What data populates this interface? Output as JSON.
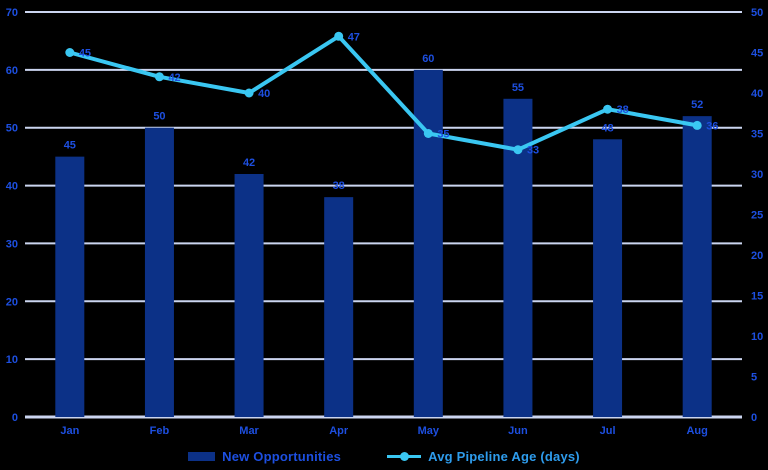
{
  "chart_data": {
    "type": "combo-bar-line",
    "title": "",
    "categories": [
      "Jan",
      "Feb",
      "Mar",
      "Apr",
      "May",
      "Jun",
      "Jul",
      "Aug"
    ],
    "series": [
      {
        "name": "New Opportunities",
        "type": "bar",
        "axis": "left",
        "values": [
          45,
          50,
          42,
          38,
          60,
          55,
          48,
          52
        ]
      },
      {
        "name": "Avg Pipeline Age (days)",
        "type": "line",
        "axis": "right",
        "values": [
          45,
          42,
          40,
          47,
          35,
          33,
          38,
          36
        ]
      }
    ],
    "left_axis": {
      "min": 0,
      "max": 70,
      "ticks": [
        0,
        10,
        20,
        30,
        40,
        50,
        60,
        70
      ]
    },
    "right_axis": {
      "min": 0,
      "max": 50,
      "ticks": [
        0,
        5,
        10,
        15,
        20,
        25,
        30,
        35,
        40,
        45,
        50
      ]
    },
    "grid": true,
    "legend_position": "bottom",
    "data_labels": true,
    "colors": {
      "background": "#000000",
      "bar": "#0c3187",
      "line": "#3ac7f2",
      "data_label": "#1d4fe0",
      "axis_label": "#1d4fe0",
      "grid": "#cbd5f0",
      "bar_legend_text": "#1d4fe0",
      "line_legend_text": "#2e9cec"
    }
  }
}
